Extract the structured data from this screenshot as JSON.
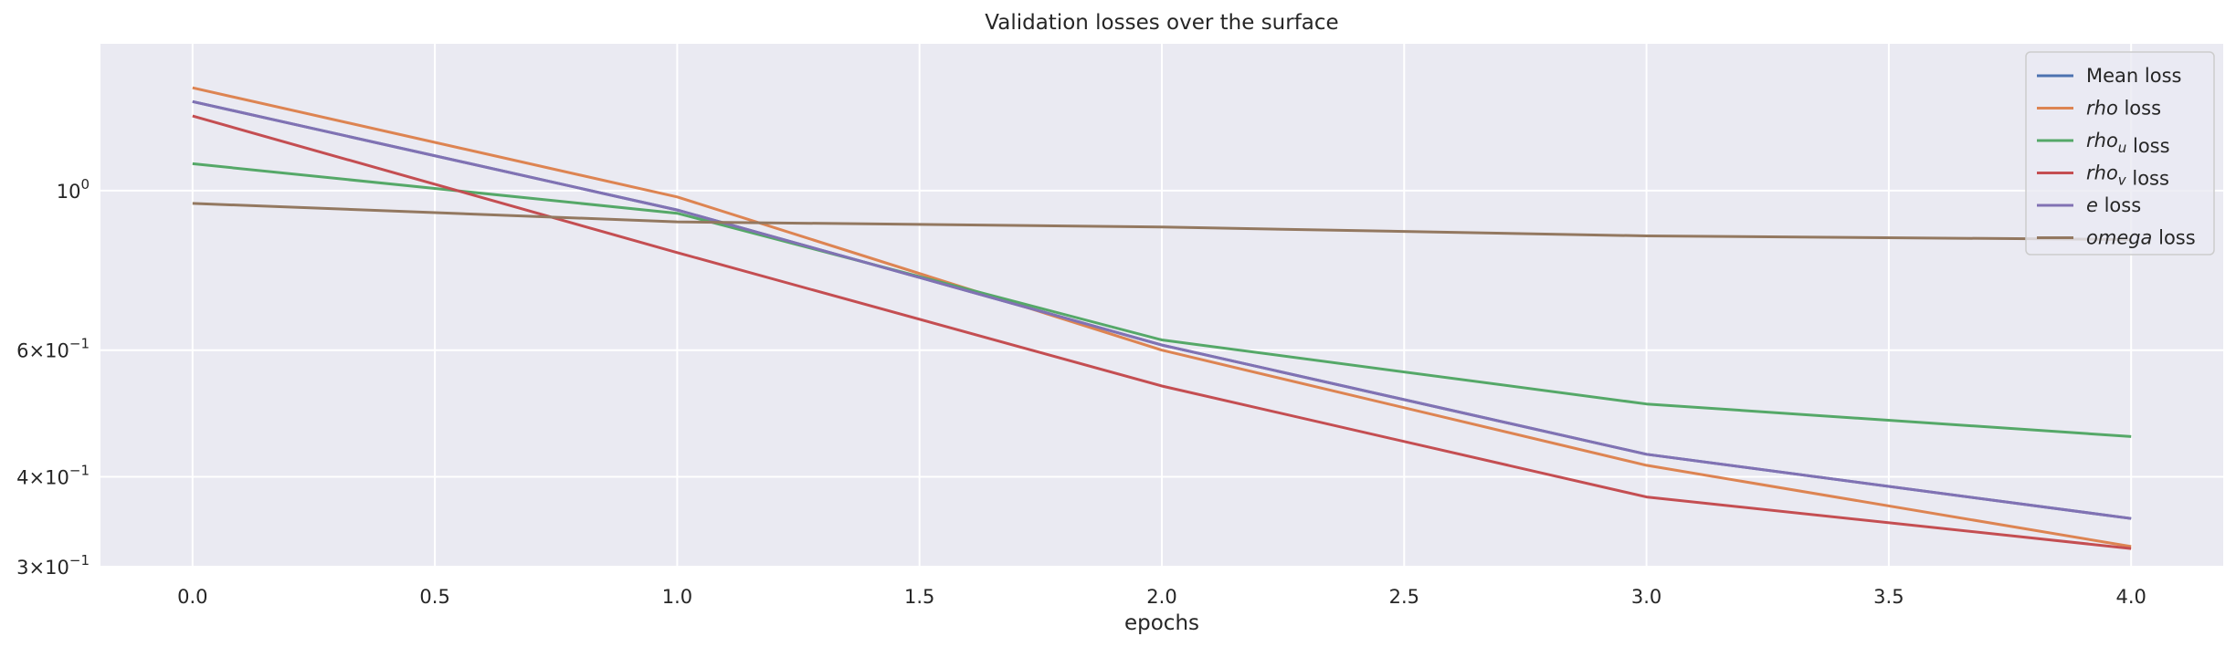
{
  "chart_data": {
    "type": "line",
    "title": "Validation losses over the surface",
    "xlabel": "epochs",
    "ylabel": "",
    "x": [
      0,
      1,
      2,
      3,
      4
    ],
    "xlim": [
      -0.19,
      4.19
    ],
    "ylim": [
      0.3,
      1.6
    ],
    "yscale": "log",
    "xticks": [
      0.0,
      0.5,
      1.0,
      1.5,
      2.0,
      2.5,
      3.0,
      3.5,
      4.0
    ],
    "xtick_labels": [
      "0.0",
      "0.5",
      "1.0",
      "1.5",
      "2.0",
      "2.5",
      "3.0",
      "3.5",
      "4.0"
    ],
    "yticks": [
      {
        "value": 1.0,
        "base": "10",
        "exp": "0"
      },
      {
        "value": 0.6,
        "mant": "6",
        "base": "10",
        "exp": "−1"
      },
      {
        "value": 0.4,
        "mant": "4",
        "base": "10",
        "exp": "−1"
      },
      {
        "value": 0.3,
        "mant": "3",
        "base": "10",
        "exp": "−1"
      }
    ],
    "times_sign": "×",
    "grid": true,
    "background": "#eaeaf2",
    "grid_color": "#ffffff",
    "legend_position": "top-right",
    "series": [
      {
        "name": "Mean loss",
        "name_parts": [
          {
            "t": "Mean loss",
            "italic": false
          }
        ],
        "color": "#4c72b0",
        "values": [
          1.33,
          0.94,
          0.61,
          0.43,
          0.35
        ]
      },
      {
        "name": "rho loss",
        "name_parts": [
          {
            "t": "rho",
            "italic": true
          },
          {
            "t": " loss",
            "italic": false
          }
        ],
        "color": "#dd8452",
        "values": [
          1.39,
          0.98,
          0.6,
          0.415,
          0.32
        ]
      },
      {
        "name": "rho_u loss",
        "name_parts": [
          {
            "t": "rho",
            "italic": true
          },
          {
            "t": "u",
            "italic": true,
            "sub": true
          },
          {
            "t": " loss",
            "italic": false
          }
        ],
        "color": "#55a868",
        "values": [
          1.09,
          0.93,
          0.62,
          0.505,
          0.455
        ]
      },
      {
        "name": "rho_v loss",
        "name_parts": [
          {
            "t": "rho",
            "italic": true
          },
          {
            "t": "v",
            "italic": true,
            "sub": true
          },
          {
            "t": " loss",
            "italic": false
          }
        ],
        "color": "#c44e52",
        "values": [
          1.27,
          0.82,
          0.535,
          0.375,
          0.318
        ]
      },
      {
        "name": "e loss",
        "name_parts": [
          {
            "t": "e",
            "italic": true
          },
          {
            "t": " loss",
            "italic": false
          }
        ],
        "color": "#8172b3",
        "values": [
          1.33,
          0.94,
          0.61,
          0.43,
          0.35
        ]
      },
      {
        "name": "omega loss",
        "name_parts": [
          {
            "t": "omega",
            "italic": true
          },
          {
            "t": " loss",
            "italic": false
          }
        ],
        "color": "#937860",
        "values": [
          0.96,
          0.905,
          0.89,
          0.865,
          0.855
        ]
      }
    ]
  }
}
